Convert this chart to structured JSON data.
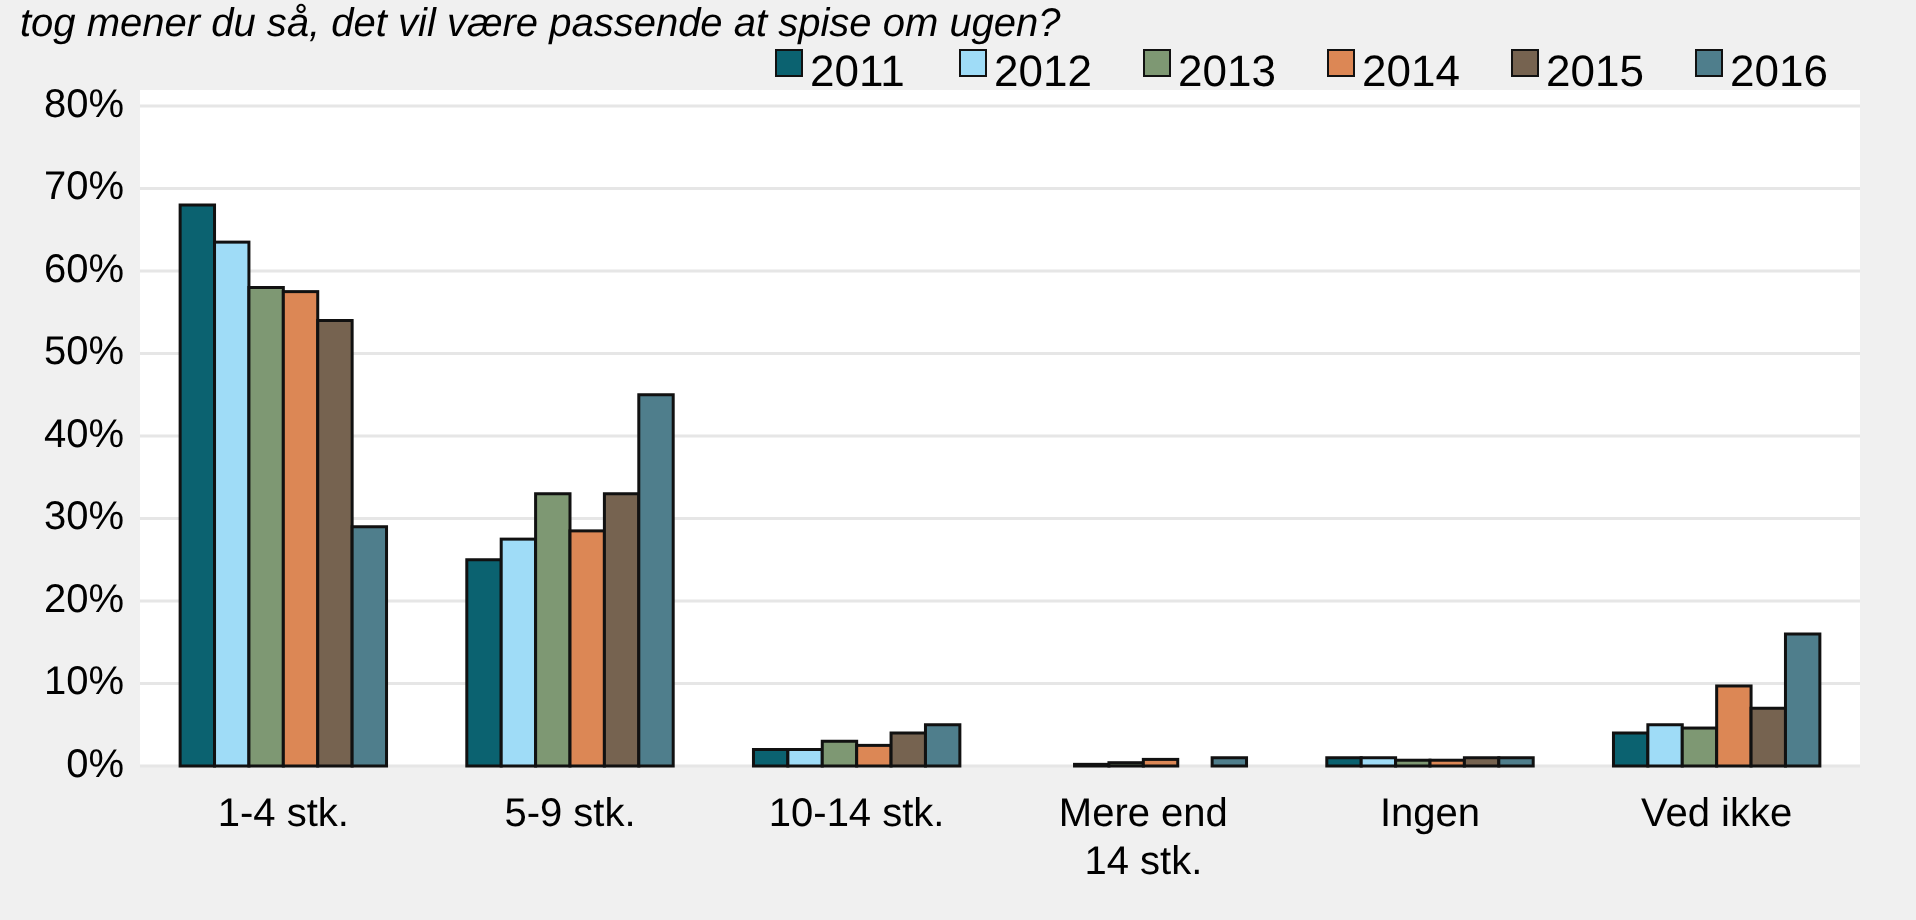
{
  "chart_data": {
    "type": "bar",
    "title": "tog mener du så, det vil være passende at spise om ugen?",
    "categories": [
      "1-4 stk.",
      "5-9 stk.",
      "10-14 stk.",
      "Mere end 14 stk.",
      "Ingen",
      "Ved ikke"
    ],
    "series": [
      {
        "name": "2011",
        "color": "#0b6270",
        "values": [
          68,
          25,
          2,
          0,
          1,
          4
        ]
      },
      {
        "name": "2012",
        "color": "#9fdcf7",
        "values": [
          63.5,
          27.5,
          2,
          0.2,
          1,
          5
        ]
      },
      {
        "name": "2013",
        "color": "#7e9873",
        "values": [
          58,
          33,
          3,
          0.4,
          0.7,
          4.6
        ]
      },
      {
        "name": "2014",
        "color": "#dc8755",
        "values": [
          57.5,
          28.5,
          2.5,
          0.8,
          0.7,
          9.7
        ]
      },
      {
        "name": "2015",
        "color": "#766350",
        "values": [
          54,
          33,
          4,
          0,
          1,
          7
        ]
      },
      {
        "name": "2016",
        "color": "#4f7e8c",
        "values": [
          29,
          45,
          5,
          1,
          1,
          16
        ]
      }
    ],
    "ylim": [
      0,
      80
    ],
    "yticks": [
      {
        "value": 0,
        "label": "0%"
      },
      {
        "value": 10,
        "label": "10%"
      },
      {
        "value": 20,
        "label": "20%"
      },
      {
        "value": 30,
        "label": "30%"
      },
      {
        "value": 40,
        "label": "40%"
      },
      {
        "value": 50,
        "label": "50%"
      },
      {
        "value": 60,
        "label": "60%"
      },
      {
        "value": 70,
        "label": "70%"
      },
      {
        "value": 80,
        "label": "80%"
      }
    ],
    "grid": "y",
    "legend": "top right"
  }
}
